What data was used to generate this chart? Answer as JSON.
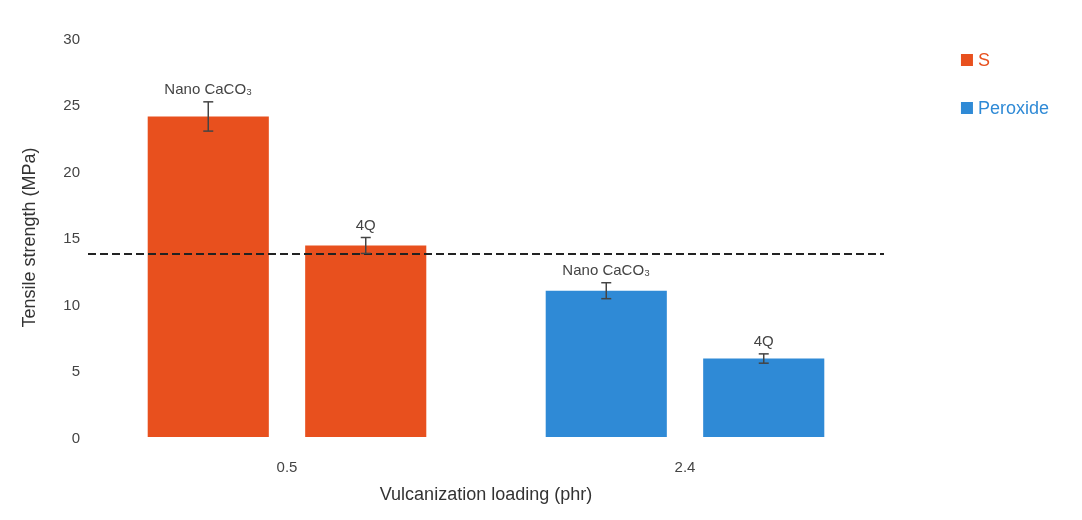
{
  "chart_data": {
    "type": "bar",
    "xlabel": "Vulcanization loading (phr)",
    "ylabel": "Tensile strength (MPa)",
    "categories": [
      "0.5",
      "2.4"
    ],
    "series": [
      {
        "name": "S",
        "color": "#e8501e",
        "values": [
          24.1,
          null
        ],
        "errors": [
          1.1,
          null
        ]
      },
      {
        "color": "#e8501e",
        "values": [
          14.4,
          null
        ],
        "errors": [
          0.6,
          null
        ]
      },
      {
        "name": "Peroxide",
        "color": "#2f8ad6",
        "values": [
          null,
          11.0
        ],
        "errors": [
          null,
          0.6
        ]
      },
      {
        "color": "#2f8ad6",
        "values": [
          null,
          5.9
        ],
        "errors": [
          null,
          0.35
        ]
      }
    ],
    "annotations": [
      "Nano CaCO₃",
      "4Q",
      "Nano CaCO₃",
      "4Q"
    ],
    "ylim": [
      0,
      30
    ],
    "yticks": [
      0,
      5,
      10,
      15,
      20,
      25,
      30
    ],
    "grid": false,
    "legend": "top right",
    "ref_lines": [
      {
        "axis": "y",
        "value": 13.8,
        "color": "#222222",
        "line_style": "dashed"
      }
    ]
  }
}
